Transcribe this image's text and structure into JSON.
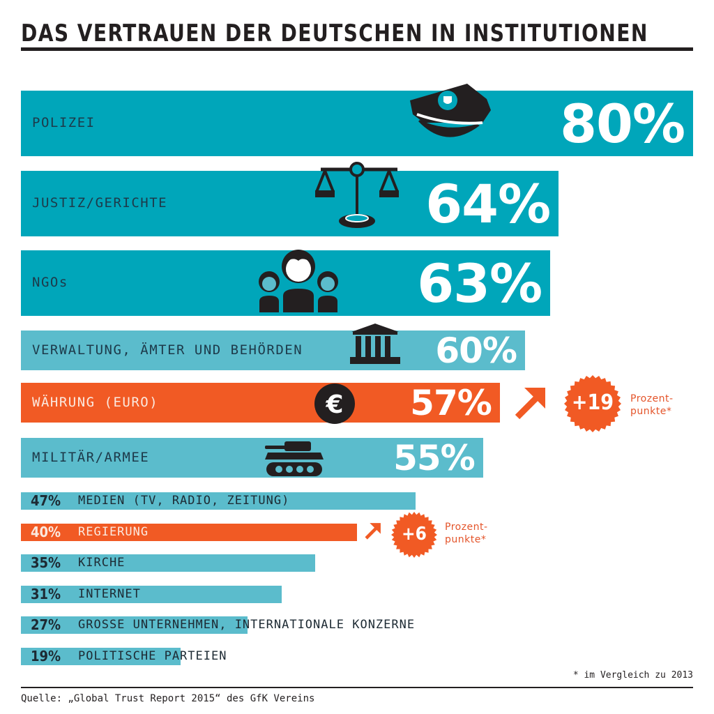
{
  "title": "DAS VERTRAUEN DER DEUTSCHEN IN INSTITUTIONEN",
  "colors": {
    "teal_dark": "#00a6ba",
    "teal_light": "#5bbccc",
    "orange": "#f15a24",
    "icon": "#231f20"
  },
  "chart_data": {
    "type": "bar",
    "orientation": "horizontal",
    "title": "DAS VERTRAUEN DER DEUTSCHEN IN INSTITUTIONEN",
    "unit": "%",
    "xlim": [
      0,
      80
    ],
    "categories": [
      "POLIZEI",
      "JUSTIZ/GERICHTE",
      "NGOs",
      "VERWALTUNG, ÄMTER UND BEHÖRDEN",
      "WÄHRUNG (EURO)",
      "MILITÄR/ARMEE",
      "MEDIEN (TV, RADIO, ZEITUNG)",
      "REGIERUNG",
      "KIRCHE",
      "INTERNET",
      "GROSSE UNTERNEHMEN, INTERNATIONALE KONZERNE",
      "POLITISCHE PARTEIEN"
    ],
    "values": [
      80,
      64,
      63,
      60,
      57,
      55,
      47,
      40,
      35,
      31,
      27,
      19
    ],
    "value_labels": [
      "80%",
      "64%",
      "63%",
      "60%",
      "57%",
      "55%",
      "47%",
      "40%",
      "35%",
      "31%",
      "27%",
      "19%"
    ],
    "icons": [
      "police-cap-icon",
      "scales-of-justice-icon",
      "people-group-icon",
      "government-building-icon",
      "euro-coin-icon",
      "tank-icon",
      null,
      null,
      null,
      null,
      null,
      null
    ],
    "highlight": [
      false,
      false,
      false,
      false,
      true,
      false,
      false,
      true,
      false,
      false,
      false,
      false
    ],
    "annotations": [
      {
        "category": "WÄHRUNG (EURO)",
        "change": "+19",
        "text_line1": "Prozent-",
        "text_line2": "punkte*"
      },
      {
        "category": "REGIERUNG",
        "change": "+6",
        "text_line1": "Prozent-",
        "text_line2": "punkte*"
      }
    ]
  },
  "footnote": "* im Vergleich zu 2013",
  "source": "Quelle: „Global Trust Report 2015“ des GfK Vereins"
}
